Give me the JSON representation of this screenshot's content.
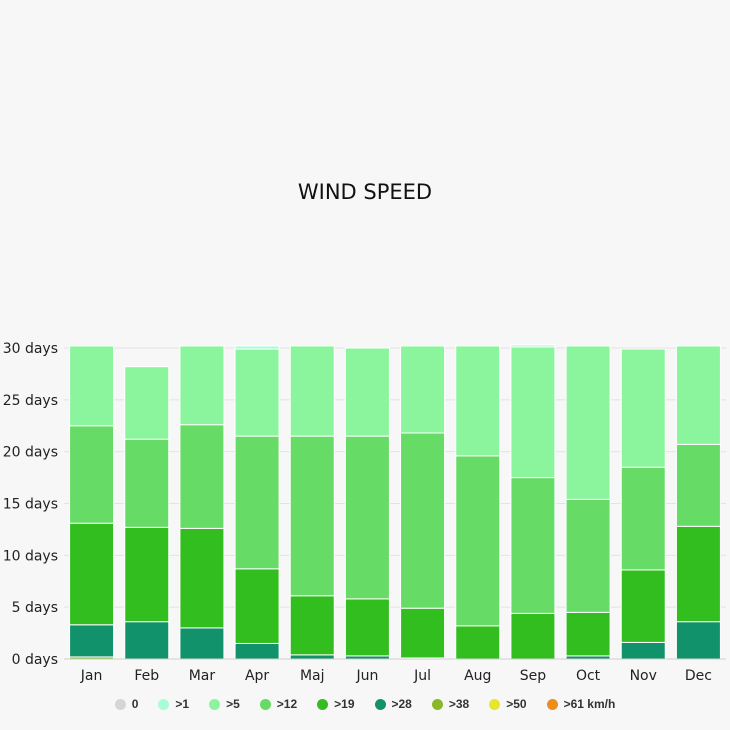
{
  "chart_data": {
    "type": "bar",
    "stacked": true,
    "title": "WIND SPEED",
    "categories": [
      "Jan",
      "Feb",
      "Mar",
      "Apr",
      "Maj",
      "Jun",
      "Jul",
      "Aug",
      "Sep",
      "Oct",
      "Nov",
      "Dec"
    ],
    "ylim": [
      0,
      30
    ],
    "yticks": [
      0,
      5,
      10,
      15,
      20,
      25,
      30
    ],
    "ytick_labels": [
      "0 days",
      "5 days",
      "10 days",
      "15 days",
      "20 days",
      "25 days",
      "30 days"
    ],
    "grid": true,
    "legend_position": "bottom",
    "series": [
      {
        "name": "0",
        "color": "#d9d4d4",
        "values": [
          0,
          0,
          0,
          0,
          0,
          0,
          0,
          0,
          0,
          0,
          0,
          0
        ]
      },
      {
        "name": ">61 km/h",
        "color": "#f08c1a",
        "values": [
          0,
          0,
          0,
          0,
          0,
          0,
          0,
          0,
          0,
          0,
          0,
          0
        ]
      },
      {
        "name": ">50",
        "color": "#e6e62a",
        "values": [
          0,
          0,
          0,
          0,
          0,
          0,
          0,
          0,
          0,
          0,
          0,
          0
        ]
      },
      {
        "name": ">38",
        "color": "#8ab82a",
        "values": [
          0.2,
          0,
          0,
          0,
          0,
          0,
          0,
          0,
          0,
          0,
          0,
          0
        ]
      },
      {
        "name": ">28",
        "color": "#12926a",
        "values": [
          3.1,
          3.6,
          3.0,
          1.5,
          0.4,
          0.3,
          0.1,
          0,
          0,
          0.3,
          1.6,
          3.6
        ]
      },
      {
        "name": ">19",
        "color": "#31be1e",
        "values": [
          9.8,
          9.1,
          9.6,
          7.2,
          5.7,
          5.5,
          4.8,
          3.2,
          4.4,
          4.2,
          7.0,
          9.2
        ]
      },
      {
        "name": ">12",
        "color": "#66dc66",
        "values": [
          9.4,
          8.5,
          10.0,
          12.8,
          15.4,
          15.7,
          16.9,
          16.4,
          13.1,
          10.9,
          9.9,
          7.9
        ]
      },
      {
        "name": ">5",
        "color": "#8af59c",
        "values": [
          7.7,
          7.0,
          7.6,
          8.4,
          8.7,
          8.5,
          8.4,
          10.6,
          12.6,
          14.8,
          11.4,
          9.5
        ]
      },
      {
        "name": ">1",
        "color": "#aafbd7",
        "values": [
          0,
          0,
          0,
          0.3,
          0,
          0,
          0,
          0,
          0.2,
          0,
          0,
          0
        ]
      }
    ],
    "legend": [
      {
        "label": "0",
        "color": "#d9d4d4"
      },
      {
        "label": ">1",
        "color": "#aafbd7"
      },
      {
        "label": ">5",
        "color": "#8af59c"
      },
      {
        "label": ">12",
        "color": "#66dc66"
      },
      {
        "label": ">19",
        "color": "#31be1e"
      },
      {
        "label": ">28",
        "color": "#12926a"
      },
      {
        "label": ">38",
        "color": "#8ab82a"
      },
      {
        "label": ">50",
        "color": "#e6e62a"
      },
      {
        "label": ">61 km/h",
        "color": "#f08c1a"
      }
    ]
  }
}
